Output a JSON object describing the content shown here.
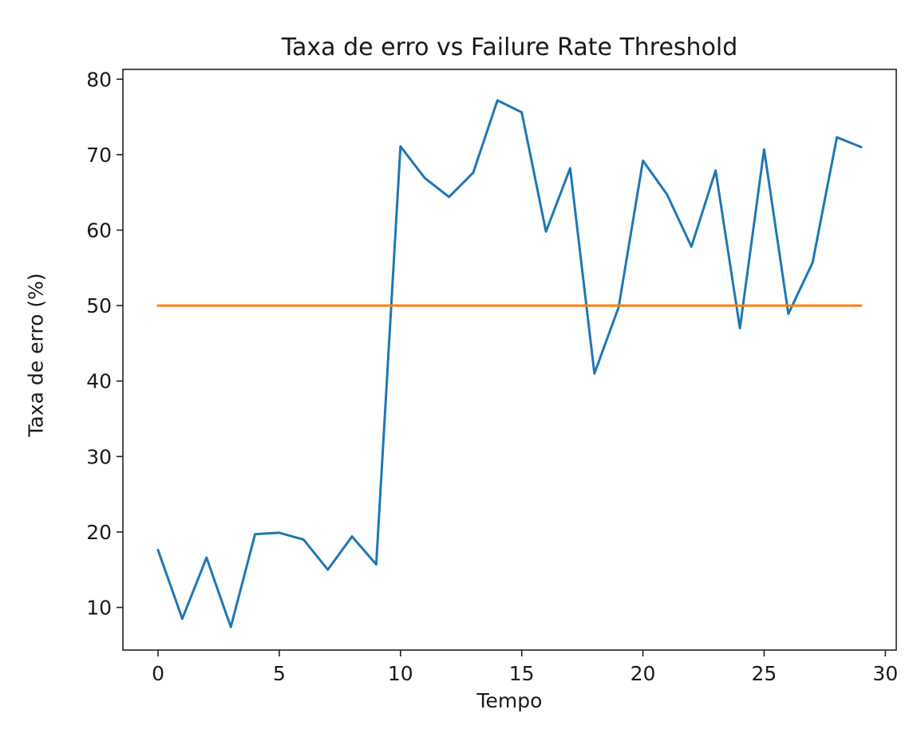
{
  "figure": {
    "title": "Taxa de erro vs Failure Rate Threshold",
    "xlabel": "Tempo",
    "ylabel": "Taxa de erro (%)"
  },
  "colors": {
    "background": "#ffffff",
    "text": "#1a1a1a",
    "spine": "#222222",
    "error_line": "#1f77b4",
    "threshold_line": "#ff7f0e"
  },
  "chart_data": {
    "type": "line",
    "title": "Taxa de erro vs Failure Rate Threshold",
    "xlabel": "Tempo",
    "ylabel": "Taxa de erro (%)",
    "grid": false,
    "legend": "none",
    "xlim": [
      -1.45,
      30.45
    ],
    "ylim": [
      4.35,
      81.3
    ],
    "xticks": [
      0,
      5,
      10,
      15,
      20,
      25,
      30
    ],
    "yticks": [
      10,
      20,
      30,
      40,
      50,
      60,
      70,
      80
    ],
    "x": [
      0,
      1,
      2,
      3,
      4,
      5,
      6,
      7,
      8,
      9,
      10,
      11,
      12,
      13,
      14,
      15,
      16,
      17,
      18,
      19,
      20,
      21,
      22,
      23,
      24,
      25,
      26,
      27,
      28,
      29
    ],
    "series": [
      {
        "name": "taxa_de_erro",
        "label": "Taxa de erro (%)",
        "color": "#1f77b4",
        "line_width": 3,
        "values": [
          17.6,
          8.5,
          16.6,
          7.4,
          19.7,
          19.9,
          19.0,
          15.0,
          19.4,
          15.7,
          71.1,
          66.9,
          64.4,
          67.6,
          77.2,
          75.6,
          59.8,
          68.2,
          41.0,
          49.8,
          69.2,
          64.7,
          57.8,
          67.9,
          47.0,
          70.7,
          48.9,
          55.7,
          72.3,
          71.0
        ]
      },
      {
        "name": "failure_rate_threshold",
        "label": "Failure Rate Threshold",
        "color": "#ff7f0e",
        "line_width": 3,
        "constant": 50,
        "x_range": [
          0,
          29
        ]
      }
    ]
  }
}
